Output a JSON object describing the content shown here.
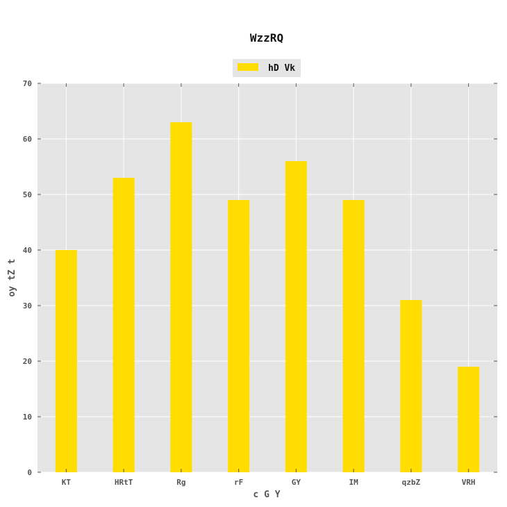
{
  "chart_data": {
    "type": "bar",
    "title": "WzzRQ",
    "xlabel": "c  G Y",
    "ylabel": "oy tZ t",
    "categories": [
      "KT",
      "HRtT",
      "Rg",
      "rF",
      "GY",
      "IM",
      "qzbZ",
      "VRH"
    ],
    "series": [
      {
        "name": "hD Vk",
        "values": [
          40,
          53,
          63,
          49,
          56,
          49,
          31,
          19
        ],
        "color": "#FFDD00"
      }
    ],
    "ylim": [
      0,
      70
    ],
    "yticks": [
      0,
      10,
      20,
      30,
      40,
      50,
      60,
      70
    ],
    "grid": true,
    "legend_position": "top-center",
    "background_color": "#E5E5E5"
  }
}
